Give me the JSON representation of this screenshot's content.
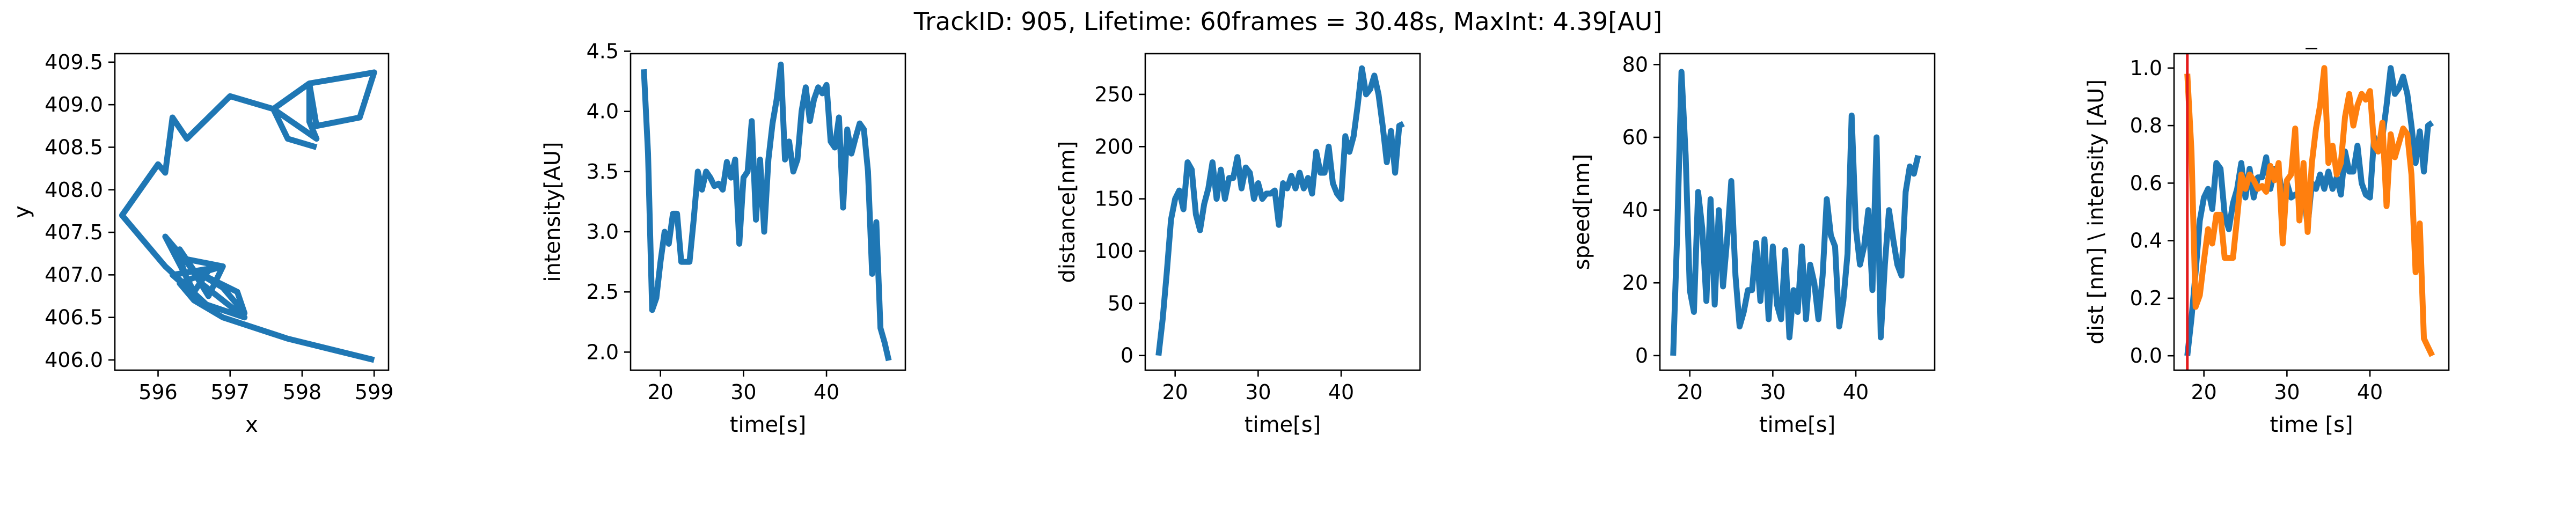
{
  "figure": {
    "suptitle": "TrackID: 905, Lifetime: 60frames = 30.48s, MaxInt: 4.39[AU]"
  },
  "colors": {
    "blue": "#1f77b4",
    "orange": "#ff7f0e",
    "red": "#e41a1c"
  },
  "chart_data": [
    {
      "type": "line",
      "title": "",
      "xlabel": "x",
      "ylabel": "y",
      "xlim": [
        595.4,
        599.2
      ],
      "ylim": [
        405.88,
        409.6
      ],
      "xticks": [
        596,
        597,
        598,
        599
      ],
      "yticks": [
        406.0,
        406.5,
        407.0,
        407.5,
        408.0,
        408.5,
        409.0,
        409.5
      ],
      "tick_decimals_y": 1,
      "grid": false,
      "series": [
        {
          "color": "blue",
          "x": [
            599.0,
            597.8,
            596.9,
            596.7,
            596.5,
            596.3,
            596.6,
            596.9,
            597.2,
            597.1,
            596.5,
            596.3,
            596.7,
            596.9,
            596.3,
            596.5,
            597.2,
            596.6,
            596.4,
            596.1,
            596.5,
            596.7,
            596.9,
            596.2,
            596.8,
            596.1,
            595.6,
            595.5,
            596.0,
            596.1,
            596.2,
            596.4,
            597.0,
            597.6,
            598.2,
            598.1,
            598.1,
            598.8,
            599.0,
            598.8,
            598.2,
            598.1,
            597.6,
            597.8,
            598.2
          ],
          "y": [
            406.0,
            406.25,
            406.5,
            406.6,
            406.7,
            406.9,
            407.0,
            406.85,
            406.55,
            406.8,
            407.05,
            407.3,
            406.75,
            407.1,
            407.2,
            406.7,
            406.5,
            406.9,
            407.15,
            407.45,
            406.8,
            407.05,
            407.1,
            407.0,
            406.55,
            407.1,
            407.6,
            407.7,
            408.3,
            408.2,
            408.85,
            408.6,
            409.1,
            408.95,
            408.6,
            408.8,
            409.25,
            409.35,
            409.38,
            408.85,
            408.75,
            409.25,
            408.95,
            408.6,
            408.5
          ]
        }
      ]
    },
    {
      "type": "line",
      "title": "",
      "xlabel": "time[s]",
      "ylabel": "intensity[AU]",
      "xlim": [
        16.4,
        49.5
      ],
      "ylim": [
        1.85,
        4.48
      ],
      "xticks": [
        20,
        30,
        40
      ],
      "yticks": [
        2.0,
        2.5,
        3.0,
        3.5,
        4.0,
        4.5
      ],
      "tick_decimals_y": 1,
      "grid": false,
      "series": [
        {
          "color": "blue",
          "x": [
            18.0,
            18.5,
            19.0,
            19.5,
            20.0,
            20.5,
            21.0,
            21.5,
            22.0,
            22.5,
            23.0,
            23.5,
            24.0,
            24.5,
            25.0,
            25.5,
            26.0,
            26.5,
            27.0,
            27.5,
            28.0,
            28.5,
            29.0,
            29.5,
            30.0,
            30.5,
            31.0,
            31.5,
            32.0,
            32.5,
            33.0,
            33.5,
            34.0,
            34.5,
            35.0,
            35.5,
            36.0,
            36.5,
            37.0,
            37.5,
            38.0,
            38.5,
            39.0,
            39.5,
            40.0,
            40.5,
            41.0,
            41.5,
            42.0,
            42.5,
            43.0,
            43.5,
            44.0,
            44.5,
            45.0,
            45.5,
            46.0,
            46.5,
            47.0,
            47.5
          ],
          "y": [
            4.35,
            3.65,
            2.35,
            2.45,
            2.75,
            3.0,
            2.9,
            3.15,
            3.15,
            2.75,
            2.75,
            2.75,
            3.1,
            3.5,
            3.35,
            3.5,
            3.45,
            3.38,
            3.4,
            3.35,
            3.58,
            3.45,
            3.6,
            2.9,
            3.45,
            3.5,
            3.92,
            3.1,
            3.6,
            3.0,
            3.6,
            3.9,
            4.1,
            4.39,
            3.6,
            3.75,
            3.5,
            3.6,
            4.0,
            4.2,
            3.92,
            4.1,
            4.2,
            4.15,
            4.22,
            3.75,
            3.7,
            3.95,
            3.2,
            3.85,
            3.65,
            3.78,
            3.9,
            3.85,
            3.5,
            2.65,
            3.08,
            2.2,
            2.08,
            1.93
          ]
        }
      ]
    },
    {
      "type": "line",
      "title": "",
      "xlabel": "time[s]",
      "ylabel": "distance[nm]",
      "xlim": [
        16.4,
        49.5
      ],
      "ylim": [
        -14,
        289
      ],
      "xticks": [
        20,
        30,
        40
      ],
      "yticks": [
        0,
        50,
        100,
        150,
        200,
        250
      ],
      "tick_decimals_y": 0,
      "grid": false,
      "series": [
        {
          "color": "blue",
          "x": [
            18.0,
            18.5,
            19.0,
            19.5,
            20.0,
            20.5,
            21.0,
            21.5,
            22.0,
            22.5,
            23.0,
            23.5,
            24.0,
            24.5,
            25.0,
            25.5,
            26.0,
            26.5,
            27.0,
            27.5,
            28.0,
            28.5,
            29.0,
            29.5,
            30.0,
            30.5,
            31.0,
            31.5,
            32.0,
            32.5,
            33.0,
            33.5,
            34.0,
            34.5,
            35.0,
            35.5,
            36.0,
            36.5,
            37.0,
            37.5,
            38.0,
            38.5,
            39.0,
            39.5,
            40.0,
            40.5,
            41.0,
            41.5,
            42.0,
            42.5,
            43.0,
            43.5,
            44.0,
            44.5,
            45.0,
            45.5,
            46.0,
            46.5,
            47.0,
            47.5
          ],
          "y": [
            0,
            35,
            80,
            130,
            150,
            158,
            140,
            185,
            178,
            135,
            120,
            145,
            160,
            185,
            150,
            178,
            150,
            170,
            170,
            190,
            160,
            180,
            175,
            150,
            165,
            150,
            155,
            155,
            158,
            125,
            165,
            160,
            172,
            160,
            175,
            160,
            170,
            155,
            195,
            175,
            175,
            200,
            165,
            155,
            150,
            210,
            195,
            210,
            240,
            275,
            250,
            255,
            268,
            250,
            220,
            185,
            215,
            175,
            220,
            222
          ]
        }
      ]
    },
    {
      "type": "line",
      "title": "",
      "xlabel": "time[s]",
      "ylabel": "speed[nm]",
      "xlim": [
        16.4,
        49.5
      ],
      "ylim": [
        -4,
        83
      ],
      "xticks": [
        20,
        30,
        40
      ],
      "yticks": [
        0,
        20,
        40,
        60,
        80
      ],
      "tick_decimals_y": 0,
      "grid": false,
      "series": [
        {
          "color": "blue",
          "x": [
            18.0,
            18.5,
            19.0,
            19.5,
            20.0,
            20.5,
            21.0,
            21.5,
            22.0,
            22.5,
            23.0,
            23.5,
            24.0,
            24.5,
            25.0,
            25.5,
            26.0,
            26.5,
            27.0,
            27.5,
            28.0,
            28.5,
            29.0,
            29.5,
            30.0,
            30.5,
            31.0,
            31.5,
            32.0,
            32.5,
            33.0,
            33.5,
            34.0,
            34.5,
            35.0,
            35.5,
            36.0,
            36.5,
            37.0,
            37.5,
            38.0,
            38.5,
            39.0,
            39.5,
            40.0,
            40.5,
            41.0,
            41.5,
            42.0,
            42.5,
            43.0,
            43.5,
            44.0,
            44.5,
            45.0,
            45.5,
            46.0,
            46.5,
            47.0,
            47.5
          ],
          "y": [
            0,
            35,
            78,
            55,
            18,
            12,
            45,
            35,
            15,
            43,
            14,
            40,
            19,
            32,
            48,
            22,
            8,
            12,
            18,
            18,
            31,
            15,
            32,
            10,
            30,
            14,
            10,
            29,
            5,
            18,
            12,
            30,
            10,
            25,
            20,
            10,
            22,
            43,
            33,
            30,
            8,
            15,
            28,
            66,
            35,
            25,
            30,
            40,
            18,
            60,
            5,
            25,
            40,
            32,
            25,
            22,
            45,
            52,
            50,
            55
          ]
        }
      ]
    },
    {
      "type": "line",
      "title": "_",
      "xlabel": "time [s]",
      "ylabel": "dist [nm] \\ intensity [AU]",
      "xlim": [
        16.4,
        49.5
      ],
      "ylim": [
        -0.05,
        1.05
      ],
      "xticks": [
        20,
        30,
        40
      ],
      "yticks": [
        0.0,
        0.2,
        0.4,
        0.6,
        0.8,
        1.0
      ],
      "tick_decimals_y": 1,
      "grid": false,
      "vline": {
        "x": 18.0,
        "color": "red"
      },
      "series": [
        {
          "color": "blue",
          "x": [
            18.0,
            18.5,
            19.0,
            19.5,
            20.0,
            20.5,
            21.0,
            21.5,
            22.0,
            22.5,
            23.0,
            23.5,
            24.0,
            24.5,
            25.0,
            25.5,
            26.0,
            26.5,
            27.0,
            27.5,
            28.0,
            28.5,
            29.0,
            29.5,
            30.0,
            30.5,
            31.0,
            31.5,
            32.0,
            32.5,
            33.0,
            33.5,
            34.0,
            34.5,
            35.0,
            35.5,
            36.0,
            36.5,
            37.0,
            37.5,
            38.0,
            38.5,
            39.0,
            39.5,
            40.0,
            40.5,
            41.0,
            41.5,
            42.0,
            42.5,
            43.0,
            43.5,
            44.0,
            44.5,
            45.0,
            45.5,
            46.0,
            46.5,
            47.0,
            47.5
          ],
          "y": [
            0.0,
            0.13,
            0.29,
            0.47,
            0.55,
            0.58,
            0.51,
            0.67,
            0.65,
            0.49,
            0.44,
            0.53,
            0.58,
            0.67,
            0.55,
            0.65,
            0.55,
            0.62,
            0.62,
            0.69,
            0.58,
            0.65,
            0.64,
            0.55,
            0.6,
            0.55,
            0.56,
            0.56,
            0.57,
            0.45,
            0.6,
            0.58,
            0.63,
            0.58,
            0.64,
            0.58,
            0.62,
            0.56,
            0.71,
            0.64,
            0.64,
            0.73,
            0.6,
            0.56,
            0.55,
            0.76,
            0.71,
            0.76,
            0.87,
            1.0,
            0.91,
            0.93,
            0.97,
            0.91,
            0.8,
            0.67,
            0.78,
            0.64,
            0.8,
            0.81
          ]
        },
        {
          "color": "orange",
          "x": [
            18.0,
            18.5,
            19.0,
            19.5,
            20.0,
            20.5,
            21.0,
            21.5,
            22.0,
            22.5,
            23.0,
            23.5,
            24.0,
            24.5,
            25.0,
            25.5,
            26.0,
            26.5,
            27.0,
            27.5,
            28.0,
            28.5,
            29.0,
            29.5,
            30.0,
            30.5,
            31.0,
            31.5,
            32.0,
            32.5,
            33.0,
            33.5,
            34.0,
            34.5,
            35.0,
            35.5,
            36.0,
            36.5,
            37.0,
            37.5,
            38.0,
            38.5,
            39.0,
            39.5,
            40.0,
            40.5,
            41.0,
            41.5,
            42.0,
            42.5,
            43.0,
            43.5,
            44.0,
            44.5,
            45.0,
            45.5,
            46.0,
            46.5,
            47.0,
            47.5
          ],
          "y": [
            0.98,
            0.71,
            0.17,
            0.21,
            0.33,
            0.44,
            0.39,
            0.49,
            0.49,
            0.34,
            0.34,
            0.34,
            0.48,
            0.63,
            0.58,
            0.63,
            0.61,
            0.58,
            0.59,
            0.57,
            0.66,
            0.61,
            0.67,
            0.39,
            0.61,
            0.63,
            0.79,
            0.47,
            0.67,
            0.43,
            0.67,
            0.79,
            0.87,
            1.0,
            0.67,
            0.73,
            0.63,
            0.67,
            0.83,
            0.91,
            0.8,
            0.87,
            0.91,
            0.89,
            0.92,
            0.73,
            0.71,
            0.81,
            0.52,
            0.77,
            0.69,
            0.74,
            0.79,
            0.77,
            0.63,
            0.29,
            0.46,
            0.06,
            0.03,
            0.0
          ]
        }
      ]
    }
  ]
}
